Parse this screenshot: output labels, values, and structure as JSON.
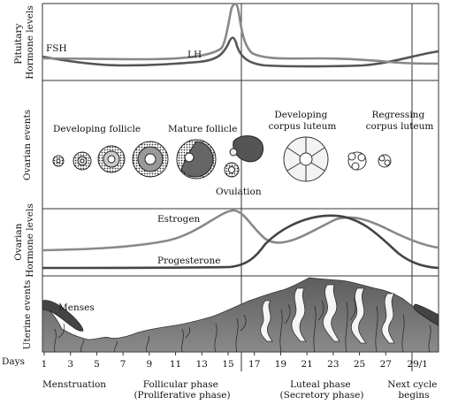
{
  "rows": {
    "pituitary": "Pituitary\nHormone levels",
    "ovarian_events": "Ovarian events",
    "ovarian_hormones": "Ovarian\nHormone levels",
    "uterine": "Uterine events"
  },
  "pituitary": {
    "fsh": "FSH",
    "lh": "LH"
  },
  "ovarian": {
    "developing_follicle": "Developing follicle",
    "mature_follicle": "Mature follicle",
    "developing_corpus_luteum": "Developing\ncorpus luteum",
    "regressing_corpus_luteum": "Regressing\ncorpus luteum",
    "ovulation": "Ovulation"
  },
  "hormones": {
    "estrogen": "Estrogen",
    "progesterone": "Progesterone"
  },
  "uterine": {
    "menses": "Menses"
  },
  "days": {
    "label": "Days",
    "ticks": [
      "1",
      "3",
      "5",
      "7",
      "9",
      "11",
      "13",
      "15",
      "17",
      "19",
      "21",
      "23",
      "25",
      "27",
      "29/1"
    ]
  },
  "phases": {
    "menstruation": "Menstruation",
    "follicular": "Follicular phase\n(Proliferative phase)",
    "luteal": "Luteal phase\n(Secretory phase)",
    "next_cycle": "Next cycle\nbegins"
  },
  "colors": {
    "line": "#3a3a3a",
    "curve_light": "#8a8a8a",
    "curve_dark": "#4a4a4a",
    "tissue": "#6e6e6e",
    "tissue_dark": "#444444"
  }
}
